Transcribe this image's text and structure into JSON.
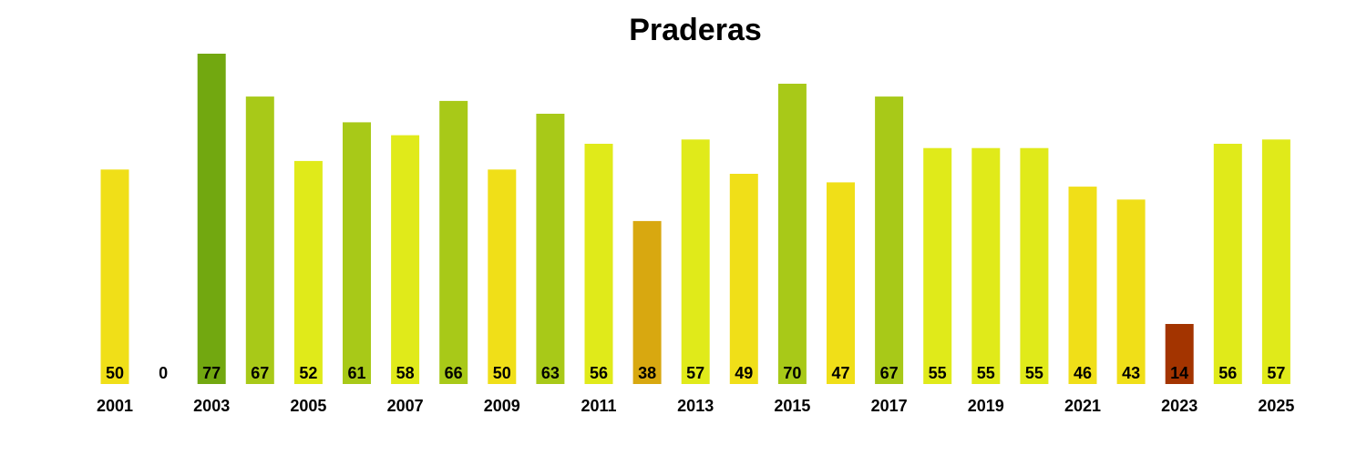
{
  "chart_data": {
    "type": "bar",
    "title": "Praderas",
    "xlabel": "",
    "ylabel": "",
    "categories": [
      "2001",
      "2002",
      "2003",
      "2004",
      "2005",
      "2006",
      "2007",
      "2008",
      "2009",
      "2010",
      "2011",
      "2012",
      "2013",
      "2014",
      "2015",
      "2016",
      "2017",
      "2018",
      "2019",
      "2020",
      "2021",
      "2022",
      "2023",
      "2024",
      "2025"
    ],
    "tick_labels": [
      "2001",
      "2003",
      "2005",
      "2007",
      "2009",
      "2011",
      "2013",
      "2015",
      "2017",
      "2019",
      "2021",
      "2023",
      "2025"
    ],
    "values": [
      50,
      0,
      77,
      67,
      52,
      61,
      58,
      66,
      50,
      63,
      56,
      38,
      57,
      49,
      70,
      47,
      67,
      55,
      55,
      55,
      46,
      43,
      14,
      56,
      57
    ],
    "colors": [
      "#f0df18",
      "#f0df18",
      "#72a810",
      "#a8c918",
      "#e0ea1a",
      "#a8c918",
      "#e0ea1a",
      "#a8c918",
      "#f0df18",
      "#a8c918",
      "#e0ea1a",
      "#d8a810",
      "#e0ea1a",
      "#f0df18",
      "#a8c918",
      "#f0df18",
      "#a8c918",
      "#e0ea1a",
      "#e0ea1a",
      "#e0ea1a",
      "#f0df18",
      "#f0df18",
      "#a33400",
      "#e0ea1a",
      "#e0ea1a"
    ],
    "ylim": [
      0,
      77
    ],
    "grid": false,
    "legend": "none",
    "data_labels": true
  }
}
